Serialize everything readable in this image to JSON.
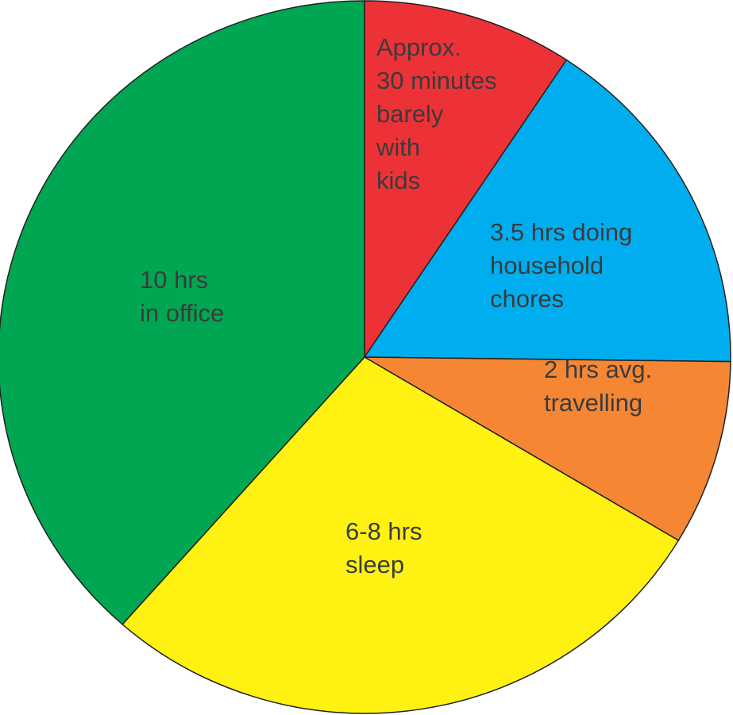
{
  "chart_data": {
    "type": "pie",
    "title": "",
    "legend": "none",
    "start_angle": "12 o'clock",
    "direction": "clockwise",
    "slices": [
      {
        "label_lines": [
          "Approx.",
          "30 minutes",
          "barely",
          "with",
          "kids"
        ],
        "value": 9.3,
        "color": "#ed3237"
      },
      {
        "label_lines": [
          "3.5 hrs doing",
          "household",
          "chores"
        ],
        "value": 15.9,
        "color": "#00aeef"
      },
      {
        "label_lines": [
          "2 hrs avg.",
          "travelling"
        ],
        "value": 8.4,
        "color": "#f58634"
      },
      {
        "label_lines": [
          "6-8 hrs",
          "sleep"
        ],
        "value": 27.9,
        "color": "#fff212"
      },
      {
        "label_lines": [
          "10 hrs",
          "in office"
        ],
        "value": 38.5,
        "color": "#00a651"
      }
    ],
    "outline_color": "#231f20"
  }
}
